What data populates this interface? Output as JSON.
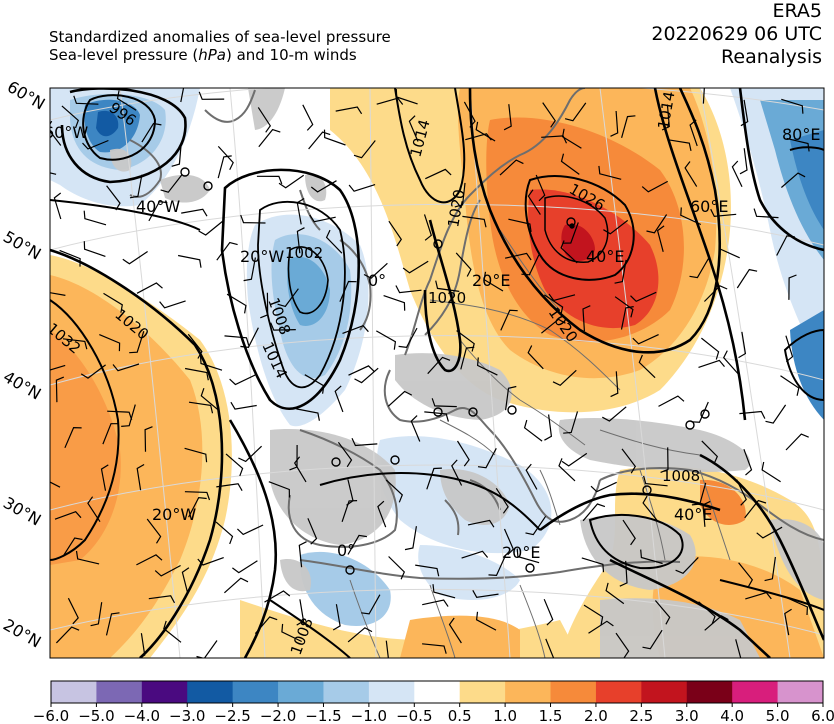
{
  "header": {
    "line1": "Standardized anomalies of sea-level pressure",
    "line2_pre": "Sea-level pressure (",
    "line2_unit": "hPa",
    "line2_post": ") and 10-m winds",
    "dataset": "ERA5",
    "datetime": "20220629 06 UTC",
    "product": "Reanalysis"
  },
  "map": {
    "lat_labels": [
      "60°N",
      "50°N",
      "40°N",
      "30°N",
      "20°N"
    ],
    "lon_labels": [
      "60°W",
      "40°W",
      "20°W",
      "0°",
      "20°E",
      "40°E",
      "60°E",
      "80°E",
      "20°W",
      "0°",
      "20°E",
      "40°E"
    ],
    "isobar_labels": [
      "996",
      "1002",
      "1008",
      "1014",
      "1014",
      "1020",
      "1020",
      "1026",
      "1020",
      "1020",
      "1032",
      "1008",
      "1008",
      "1014"
    ],
    "colors": {
      "land_gray": "#c8c8c8",
      "coast": "#6e6e6e",
      "contour": "#000000"
    }
  },
  "colorbar": {
    "ticks": [
      "−6.0",
      "−5.0",
      "−4.0",
      "−3.0",
      "−2.5",
      "−2.0",
      "−1.5",
      "−1.0",
      "−0.5",
      "0.5",
      "1.0",
      "1.5",
      "2.0",
      "2.5",
      "3.0",
      "4.0",
      "5.0",
      "6.0"
    ],
    "colors": [
      "#c7c4e2",
      "#7c68b4",
      "#4a0a80",
      "#125aa3",
      "#3d86c3",
      "#6aaad6",
      "#a6cbe8",
      "#d5e5f5",
      "#ffffff",
      "#fddb8a",
      "#fcb65a",
      "#f68a3a",
      "#e7402b",
      "#c2141e",
      "#7a0018",
      "#d81e7c",
      "#d793cd"
    ]
  }
}
